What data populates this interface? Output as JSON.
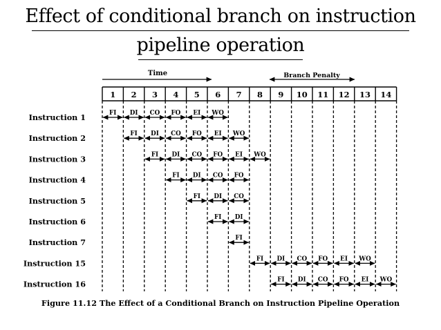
{
  "slide": {
    "title_line1": "Effect of conditional branch on instruction",
    "title_line2": "pipeline operation"
  },
  "figure": {
    "time_label": "Time",
    "branch_penalty_label": "Branch Penalty",
    "caption": "Figure 11.12  The Effect of a Conditional Branch on Instruction Pipeline Operation",
    "cycles": [
      "1",
      "2",
      "3",
      "4",
      "5",
      "6",
      "7",
      "8",
      "9",
      "10",
      "11",
      "12",
      "13",
      "14"
    ],
    "instructions": [
      {
        "label": "Instruction 1",
        "start": 1,
        "stages": [
          "FI",
          "DI",
          "CO",
          "FO",
          "EI",
          "WO"
        ]
      },
      {
        "label": "Instruction 2",
        "start": 2,
        "stages": [
          "FI",
          "DI",
          "CO",
          "FO",
          "EI",
          "WO"
        ]
      },
      {
        "label": "Instruction 3",
        "start": 3,
        "stages": [
          "FI",
          "DI",
          "CO",
          "FO",
          "EI",
          "WO"
        ]
      },
      {
        "label": "Instruction 4",
        "start": 4,
        "stages": [
          "FI",
          "DI",
          "CO",
          "FO"
        ]
      },
      {
        "label": "Instruction 5",
        "start": 5,
        "stages": [
          "FI",
          "DI",
          "CO"
        ]
      },
      {
        "label": "Instruction 6",
        "start": 6,
        "stages": [
          "FI",
          "DI"
        ]
      },
      {
        "label": "Instruction 7",
        "start": 7,
        "stages": [
          "FI"
        ]
      },
      {
        "label": "Instruction 15",
        "start": 8,
        "stages": [
          "FI",
          "DI",
          "CO",
          "FO",
          "EI",
          "WO"
        ]
      },
      {
        "label": "Instruction 16",
        "start": 9,
        "stages": [
          "FI",
          "DI",
          "CO",
          "FO",
          "EI",
          "WO"
        ]
      }
    ]
  }
}
